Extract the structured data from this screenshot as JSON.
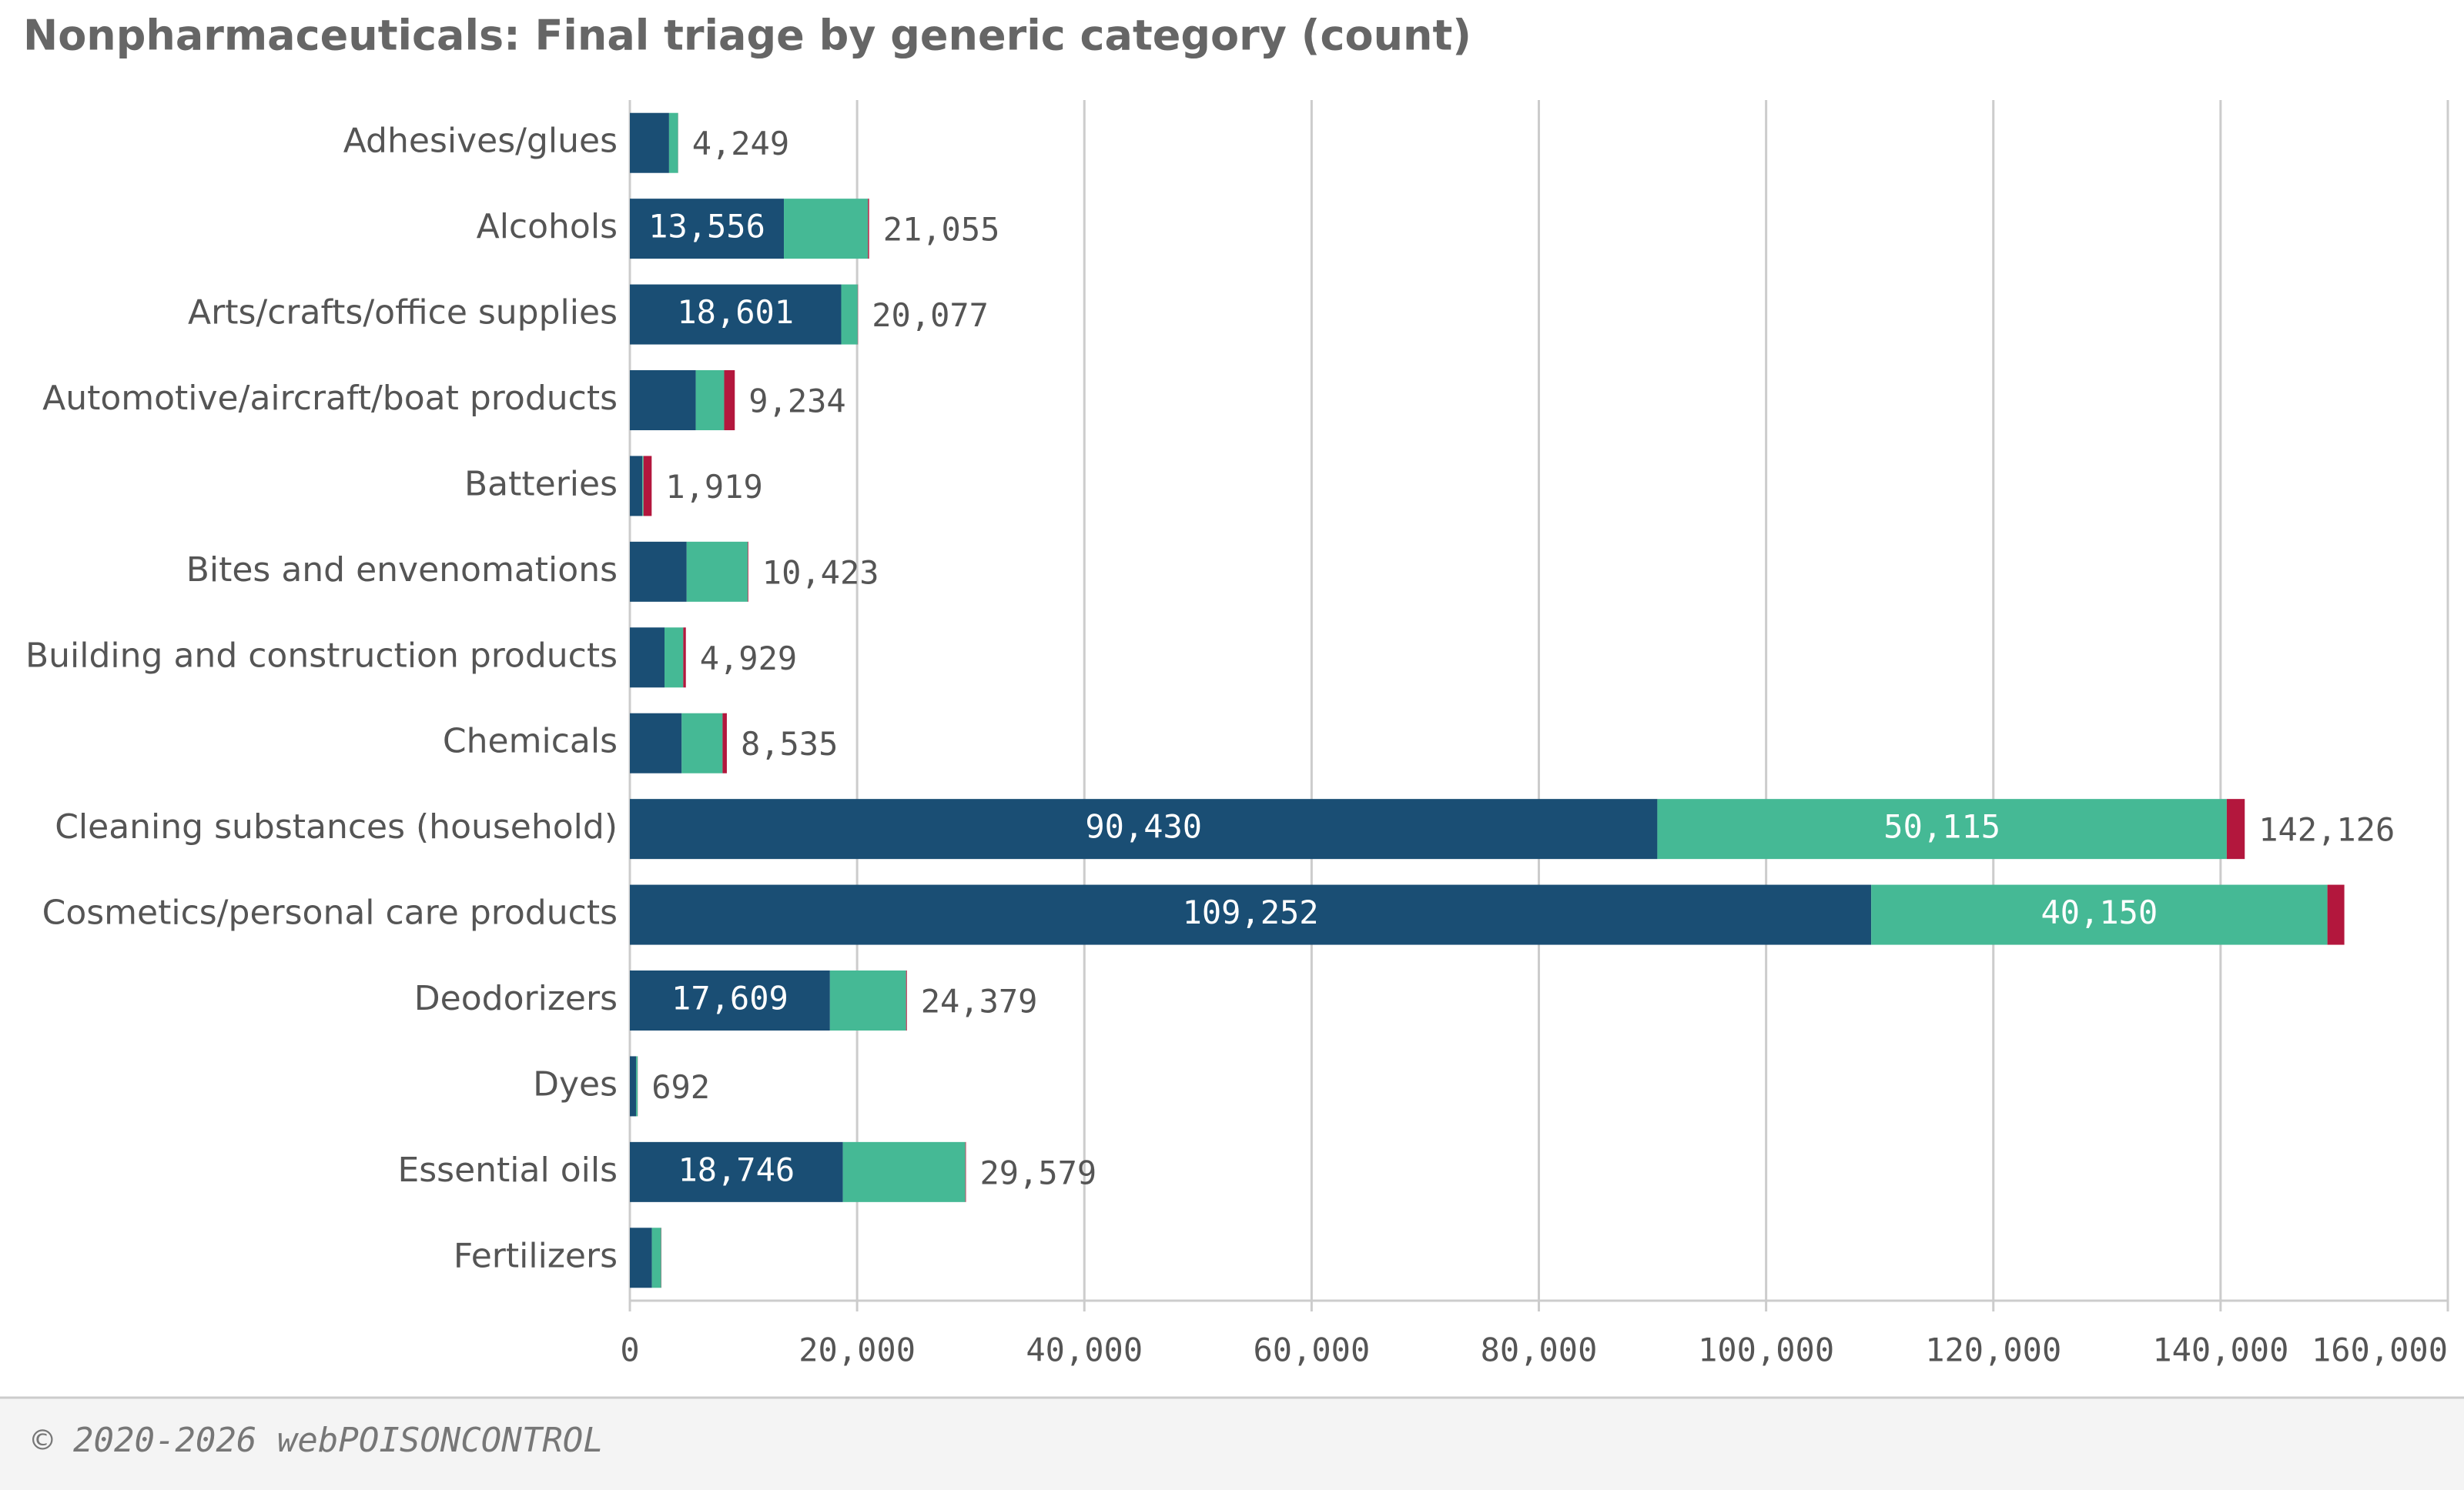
{
  "chart_data": {
    "type": "stacked-bar-horizontal",
    "title": "Nonpharmaceuticals: Final triage by generic category (count)",
    "footer": "© 2020-2026 webPOISONCONTROL",
    "categories": [
      "Adhesives/glues",
      "Alcohols",
      "Arts/crafts/office supplies",
      "Automotive/aircraft/boat products",
      "Batteries",
      "Bites and envenomations",
      "Building and construction products",
      "Chemicals",
      "Cleaning substances (household)",
      "Cosmetics/personal care products",
      "Deodorizers",
      "Dyes",
      "Essential oils",
      "Fertilizers"
    ],
    "series": [
      {
        "color": "#1a4e74",
        "values": [
          3450,
          13556,
          18601,
          5800,
          1100,
          5000,
          3050,
          4560,
          90430,
          109252,
          17609,
          550,
          18746,
          1940
        ],
        "value_labels": [
          null,
          "13,556",
          "18,601",
          null,
          null,
          null,
          null,
          null,
          "90,430",
          "109,252",
          "17,609",
          null,
          "18,746",
          null
        ]
      },
      {
        "color": "#45b995",
        "values": [
          790,
          7400,
          1450,
          2500,
          100,
          5370,
          1650,
          3600,
          50115,
          40150,
          6700,
          130,
          10780,
          820
        ],
        "value_labels": [
          null,
          null,
          null,
          null,
          null,
          null,
          null,
          null,
          "50,115",
          "40,150",
          null,
          null,
          null,
          null
        ]
      },
      {
        "color": "#b3173d",
        "values": [
          9,
          99,
          26,
          934,
          719,
          53,
          229,
          375,
          1581,
          1490,
          70,
          12,
          53,
          20
        ]
      }
    ],
    "total_labels": [
      "4,249",
      "21,055",
      "20,077",
      "9,234",
      "1,919",
      "10,423",
      "4,929",
      "8,535",
      "142,126",
      null,
      "24,379",
      "692",
      "29,579",
      null
    ],
    "xlim": [
      0,
      160000
    ],
    "xticks": [
      0,
      {
        "value": 20000,
        "label": "20,000"
      },
      {
        "value": 40000,
        "label": "40,000"
      },
      {
        "value": 60000,
        "label": "60,000"
      },
      {
        "value": 80000,
        "label": "80,000"
      },
      {
        "value": 100000,
        "label": "100,000"
      },
      {
        "value": 120000,
        "label": "120,000"
      },
      {
        "value": 140000,
        "label": "140,000"
      },
      {
        "value": 160000,
        "label": "160,000"
      }
    ],
    "grid": true
  }
}
